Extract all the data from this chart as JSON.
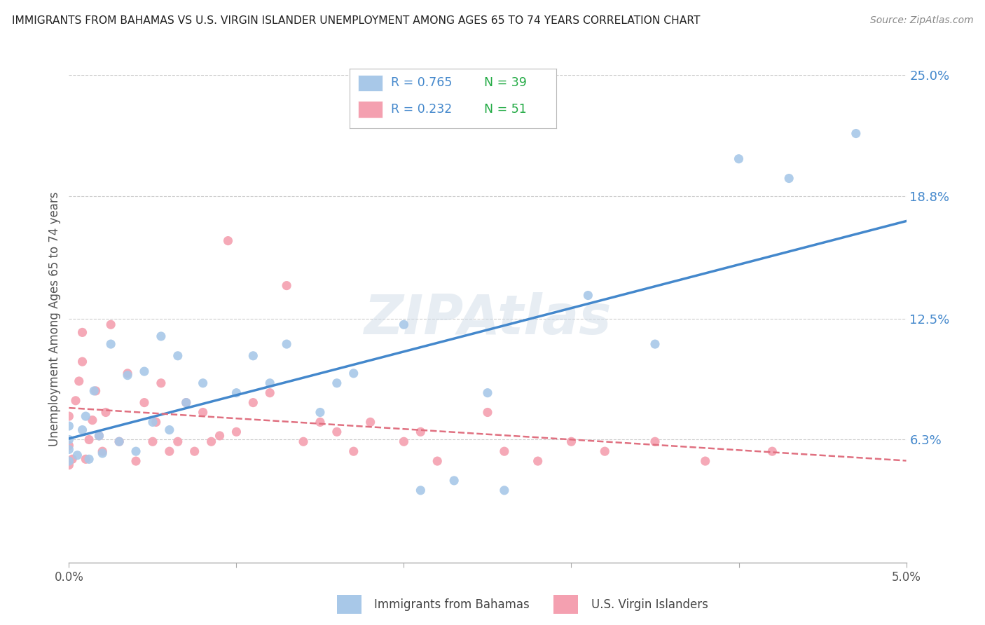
{
  "title": "IMMIGRANTS FROM BAHAMAS VS U.S. VIRGIN ISLANDER UNEMPLOYMENT AMONG AGES 65 TO 74 YEARS CORRELATION CHART",
  "source": "Source: ZipAtlas.com",
  "ylabel": "Unemployment Among Ages 65 to 74 years",
  "xlim": [
    0.0,
    5.0
  ],
  "ylim": [
    0.0,
    25.0
  ],
  "x_tick_labels": [
    "0.0%",
    "",
    "",
    "",
    "",
    "5.0%"
  ],
  "x_tick_vals": [
    0.0,
    1.0,
    2.0,
    3.0,
    4.0,
    5.0
  ],
  "y_tick_labels_right": [
    "6.3%",
    "12.5%",
    "18.8%",
    "25.0%"
  ],
  "y_tick_values_right": [
    6.3,
    12.5,
    18.8,
    25.0
  ],
  "watermark": "ZIPAtlas",
  "series1_name": "Immigrants from Bahamas",
  "series1_color": "#a8c8e8",
  "series1_line_color": "#4488cc",
  "series1_R": 0.765,
  "series1_N": 39,
  "series2_name": "U.S. Virgin Islanders",
  "series2_color": "#f4a0b0",
  "series2_line_color": "#e07080",
  "series2_R": 0.232,
  "series2_N": 51,
  "legend_r_color": "#4488cc",
  "legend_n_color": "#22aa44",
  "background_color": "#ffffff",
  "grid_color": "#cccccc",
  "axis_color": "#aaaaaa",
  "title_color": "#222222",
  "source_color": "#888888",
  "ylabel_color": "#555555",
  "tick_color": "#555555",
  "series1_x": [
    0.0,
    0.0,
    0.0,
    0.0,
    0.05,
    0.08,
    0.1,
    0.12,
    0.15,
    0.18,
    0.2,
    0.25,
    0.3,
    0.35,
    0.4,
    0.45,
    0.5,
    0.55,
    0.6,
    0.65,
    0.7,
    0.8,
    1.0,
    1.1,
    1.2,
    1.3,
    1.5,
    1.6,
    1.7,
    2.0,
    2.1,
    2.3,
    2.5,
    2.6,
    3.1,
    3.5,
    4.0,
    4.3,
    4.7
  ],
  "series1_y": [
    5.2,
    5.8,
    6.3,
    7.0,
    5.5,
    6.8,
    7.5,
    5.3,
    8.8,
    6.5,
    5.6,
    11.2,
    6.2,
    9.6,
    5.7,
    9.8,
    7.2,
    11.6,
    6.8,
    10.6,
    8.2,
    9.2,
    8.7,
    10.6,
    9.2,
    11.2,
    7.7,
    9.2,
    9.7,
    12.2,
    3.7,
    4.2,
    8.7,
    3.7,
    13.7,
    11.2,
    20.7,
    19.7,
    22.0
  ],
  "series2_x": [
    0.0,
    0.0,
    0.0,
    0.02,
    0.04,
    0.06,
    0.08,
    0.08,
    0.1,
    0.12,
    0.14,
    0.16,
    0.18,
    0.2,
    0.22,
    0.25,
    0.3,
    0.35,
    0.4,
    0.45,
    0.5,
    0.52,
    0.55,
    0.6,
    0.65,
    0.7,
    0.75,
    0.8,
    0.85,
    0.9,
    0.95,
    1.0,
    1.1,
    1.2,
    1.3,
    1.4,
    1.5,
    1.6,
    1.7,
    1.8,
    2.0,
    2.1,
    2.2,
    2.5,
    2.6,
    2.8,
    3.0,
    3.2,
    3.5,
    3.8,
    4.2
  ],
  "series2_y": [
    5.0,
    6.0,
    7.5,
    5.3,
    8.3,
    9.3,
    10.3,
    11.8,
    5.3,
    6.3,
    7.3,
    8.8,
    6.5,
    5.7,
    7.7,
    12.2,
    6.2,
    9.7,
    5.2,
    8.2,
    6.2,
    7.2,
    9.2,
    5.7,
    6.2,
    8.2,
    5.7,
    7.7,
    6.2,
    6.5,
    16.5,
    6.7,
    8.2,
    8.7,
    14.2,
    6.2,
    7.2,
    6.7,
    5.7,
    7.2,
    6.2,
    6.7,
    5.2,
    7.7,
    5.7,
    5.2,
    6.2,
    5.7,
    6.2,
    5.2,
    5.7
  ]
}
